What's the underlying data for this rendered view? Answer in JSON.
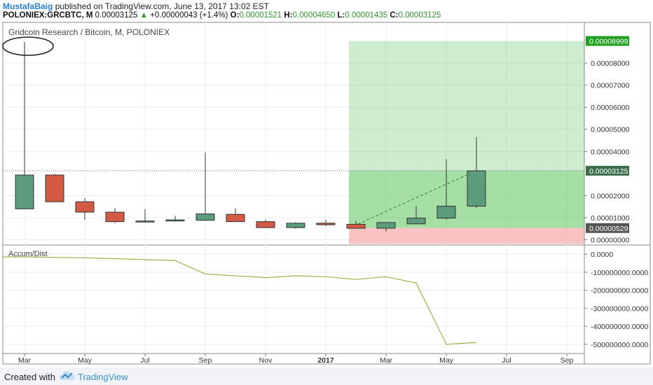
{
  "header": {
    "author": "MustafaBaig",
    "published": "published on TradingView.com, June 13, 2017 13:02 EST",
    "symbol": "POLONIEX:GRCBTC, M",
    "last": "0.00003125",
    "change_arrow": "▲",
    "change": "+0.00000043 (+1.4%)",
    "o_label": "O:",
    "o": "0.00001521",
    "h_label": "H:",
    "h": "0.00004650",
    "l_label": "L:",
    "l": "0.00001435",
    "c_label": "C:",
    "c": "0.00003125"
  },
  "chart_data": [
    {
      "type": "candlestick",
      "title": "Gridcoin Research / Bitcoin, M, POLONIEX",
      "ylim": [
        0,
        9e-05
      ],
      "y_ticks": [
        "0.00008000",
        "0.00007000",
        "0.00006000",
        "0.00005000",
        "0.00004000",
        "0.00002000",
        "0.00001000",
        "0.00000000"
      ],
      "x_ticks": [
        {
          "label": "Mar",
          "t": 0
        },
        {
          "label": "May",
          "t": 2
        },
        {
          "label": "Jul",
          "t": 4
        },
        {
          "label": "Sep",
          "t": 6
        },
        {
          "label": "Nov",
          "t": 8
        },
        {
          "label": "2017",
          "t": 10,
          "bold": true
        },
        {
          "label": "Mar",
          "t": 12
        },
        {
          "label": "May",
          "t": 14
        },
        {
          "label": "Jul",
          "t": 16
        },
        {
          "label": "Sep",
          "t": 18
        }
      ],
      "candles": [
        {
          "t": 0,
          "o": 1.4e-05,
          "h": 8.95e-05,
          "l": 1.4e-05,
          "c": 2.93e-05
        },
        {
          "t": 1,
          "o": 2.93e-05,
          "h": 2.98e-05,
          "l": 1.72e-05,
          "c": 1.72e-05
        },
        {
          "t": 2,
          "o": 1.72e-05,
          "h": 1.88e-05,
          "l": 9e-06,
          "c": 1.25e-05
        },
        {
          "t": 3,
          "o": 1.25e-05,
          "h": 1.42e-05,
          "l": 7.5e-06,
          "c": 8.2e-06
        },
        {
          "t": 4,
          "o": 8.2e-06,
          "h": 1.38e-05,
          "l": 7.8e-06,
          "c": 8.5e-06
        },
        {
          "t": 5,
          "o": 8.5e-06,
          "h": 1.08e-05,
          "l": 8.2e-06,
          "c": 9e-06
        },
        {
          "t": 6,
          "o": 8.8e-06,
          "h": 3.95e-05,
          "l": 8.5e-06,
          "c": 1.17e-05
        },
        {
          "t": 7,
          "o": 1.15e-05,
          "h": 1.43e-05,
          "l": 8.2e-06,
          "c": 8.2e-06
        },
        {
          "t": 8,
          "o": 8.2e-06,
          "h": 9e-06,
          "l": 5.5e-06,
          "c": 5.5e-06
        },
        {
          "t": 9,
          "o": 5.5e-06,
          "h": 8e-06,
          "l": 5e-06,
          "c": 7.5e-06
        },
        {
          "t": 10,
          "o": 7.5e-06,
          "h": 9e-06,
          "l": 6.2e-06,
          "c": 6.8e-06
        },
        {
          "t": 11,
          "o": 7e-06,
          "h": 8.5e-06,
          "l": 5.2e-06,
          "c": 5.2e-06
        },
        {
          "t": 12,
          "o": 5.2e-06,
          "h": 7.8e-06,
          "l": 3.8e-06,
          "c": 7.8e-06
        },
        {
          "t": 13,
          "o": 7.2e-06,
          "h": 1.52e-05,
          "l": 7e-06,
          "c": 9.8e-06
        },
        {
          "t": 14,
          "o": 9.8e-06,
          "h": 3.65e-05,
          "l": 9e-06,
          "c": 1.52e-05
        },
        {
          "t": 15,
          "o": 1.52e-05,
          "h": 4.65e-05,
          "l": 1.43e-05,
          "c": 3.12e-05
        }
      ],
      "position": {
        "t_start": 11,
        "entry": 5.29e-06,
        "target": 8.999e-05,
        "current": 3.125e-05,
        "stop": 0.0
      },
      "labels": {
        "target": "0.00008999",
        "current": "0.00003125",
        "entry": "0.00000529"
      },
      "colors": {
        "up": "#5c9c7c",
        "down": "#d35a45",
        "profit": "#5cc45c",
        "loss": "#f59b9b",
        "target_tag": "#20a020",
        "price_tag": "#3c6e4c",
        "entry_tag": "#555555"
      }
    },
    {
      "type": "line",
      "title": "Accum/Dist",
      "ylim": [
        -520000000,
        20000000
      ],
      "y_ticks": [
        "0.0000",
        "-100000000.0000",
        "-200000000.0000",
        "-300000000.0000",
        "-400000000.0000",
        "-500000000.0000"
      ],
      "t": [
        0,
        2,
        5,
        6,
        8,
        9,
        10,
        11,
        12,
        13,
        14,
        15
      ],
      "values": [
        -15000000,
        -20000000,
        -35000000,
        -110000000,
        -130000000,
        -120000000,
        -125000000,
        -140000000,
        -125000000,
        -160000000,
        -500000000,
        -490000000
      ],
      "color": "#9bb349"
    }
  ]
}
